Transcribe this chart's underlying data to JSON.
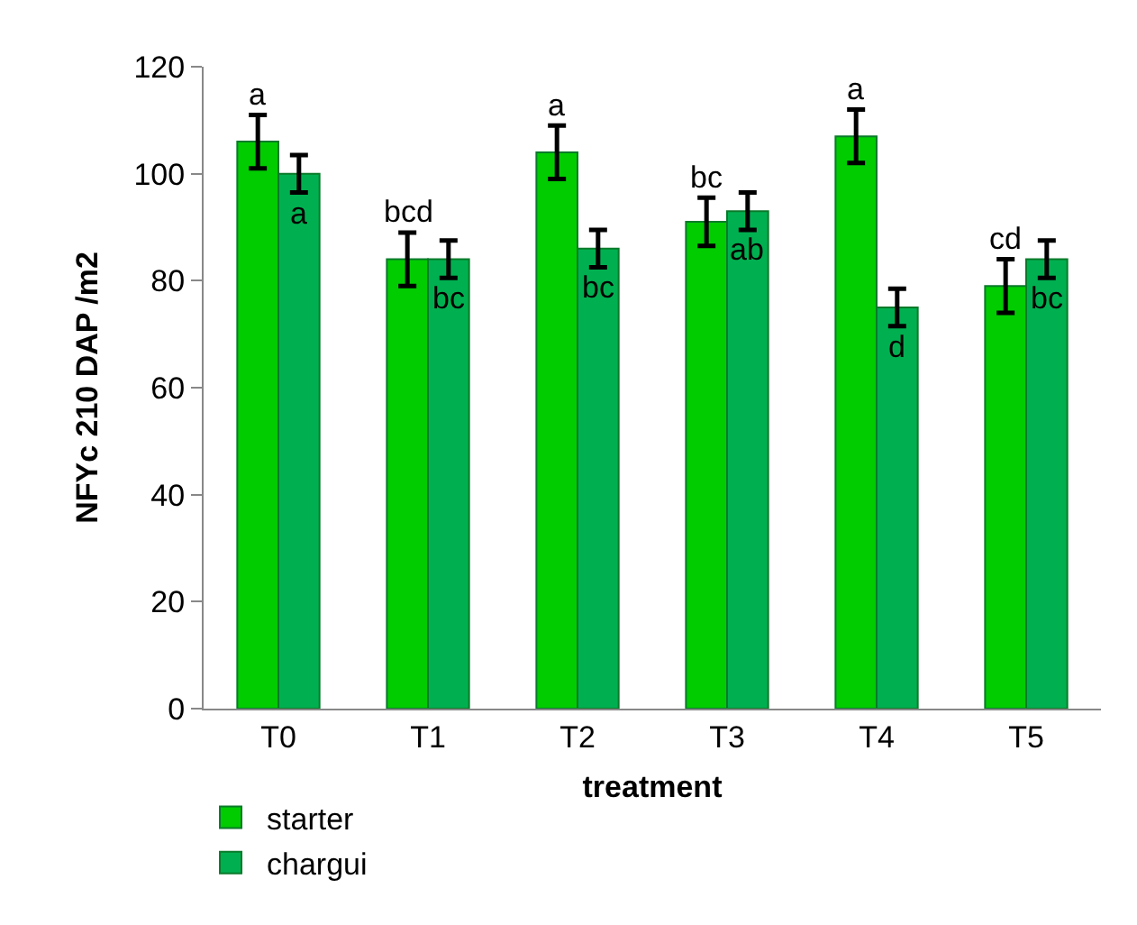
{
  "chart_data": {
    "type": "bar",
    "xlabel": "treatment",
    "ylabel": "NFYc 210 DAP /m2",
    "categories": [
      "T0",
      "T1",
      "T2",
      "T3",
      "T4",
      "T5"
    ],
    "series": [
      {
        "name": "starter",
        "color": "#00cc00",
        "values": [
          106,
          84,
          104,
          91,
          107,
          79
        ],
        "errors": [
          5,
          5,
          5,
          4.5,
          5,
          5
        ]
      },
      {
        "name": "chargui",
        "color": "#00b050",
        "values": [
          100,
          84,
          86,
          93,
          75,
          84
        ],
        "errors": [
          3.5,
          3.5,
          3.5,
          3.5,
          3.5,
          3.5
        ]
      }
    ],
    "annotations": [
      {
        "text": "a",
        "x": "T0",
        "y": 106
      },
      {
        "text": "a",
        "x": "T0",
        "y": 100
      },
      {
        "text": "bcd",
        "x": "T1",
        "y": 84
      },
      {
        "text": "bc",
        "x": "T1",
        "y": 84
      },
      {
        "text": "a",
        "x": "T2",
        "y": 104
      },
      {
        "text": "bc",
        "x": "T2",
        "y": 86
      },
      {
        "text": "bc",
        "x": "T3",
        "y": 91
      },
      {
        "text": "ab",
        "x": "T3",
        "y": 93
      },
      {
        "text": "a",
        "x": "T4",
        "y": 107
      },
      {
        "text": "d",
        "x": "T4",
        "y": 75
      },
      {
        "text": "cd",
        "x": "T5",
        "y": 79
      },
      {
        "text": "bc",
        "x": "T5",
        "y": 84
      }
    ],
    "ylim": [
      0,
      120
    ],
    "yticks": [
      0,
      20,
      40,
      60,
      80,
      100,
      120
    ],
    "legend": "bottom left"
  }
}
